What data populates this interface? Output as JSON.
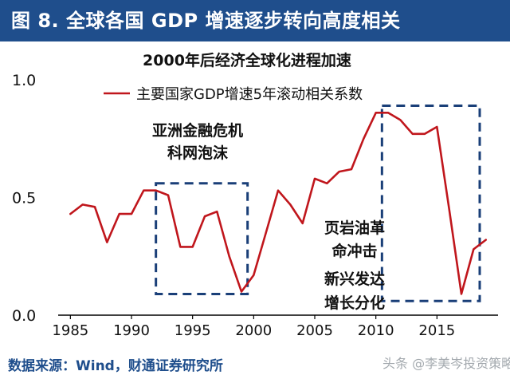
{
  "header": {
    "title": "图 8. 全球各国 GDP 增速逐步转向高度相关"
  },
  "footer": {
    "source": "数据来源：Wind，财通证券研究所"
  },
  "watermark": {
    "text": "头条 @李美岑投资策略"
  },
  "colors": {
    "header_bg": "#1f4e8c",
    "line": "#c0161c",
    "box": "#1a3f78",
    "source_text": "#1f4e8c"
  },
  "chart_data": {
    "type": "line",
    "title": "2000年后经济全球化进程加速",
    "xlabel": "",
    "ylabel": "",
    "xlim": [
      1984,
      2020
    ],
    "ylim": [
      0,
      1.0
    ],
    "x_ticks": [
      1985,
      1990,
      1995,
      2000,
      2005,
      2010,
      2015
    ],
    "y_ticks": [
      {
        "value": 0.0,
        "label": "0.0"
      },
      {
        "value": 0.5,
        "label": "0.5"
      },
      {
        "value": 1.0,
        "label": "1.0"
      }
    ],
    "grid": false,
    "legend": "top-right",
    "series": [
      {
        "name": "主要国家GDP增速5年滚动相关系数",
        "x": [
          1985,
          1986,
          1987,
          1988,
          1989,
          1990,
          1991,
          1992,
          1993,
          1994,
          1995,
          1996,
          1997,
          1998,
          1999,
          2000,
          2001,
          2002,
          2003,
          2004,
          2005,
          2006,
          2007,
          2008,
          2009,
          2010,
          2011,
          2012,
          2013,
          2014,
          2015,
          2016,
          2017,
          2018,
          2019
        ],
        "values": [
          0.43,
          0.47,
          0.46,
          0.31,
          0.43,
          0.43,
          0.53,
          0.53,
          0.51,
          0.29,
          0.29,
          0.42,
          0.44,
          0.25,
          0.1,
          0.17,
          0.35,
          0.53,
          0.47,
          0.39,
          0.58,
          0.56,
          0.61,
          0.62,
          0.75,
          0.86,
          0.86,
          0.83,
          0.77,
          0.77,
          0.8,
          0.45,
          0.09,
          0.28,
          0.32
        ]
      }
    ],
    "annotations": [
      {
        "label": "box-asia-crisis",
        "lines": [
          "亚洲金融危机",
          "科网泡沫"
        ],
        "x_range": [
          1992,
          1999.5
        ],
        "y_range": [
          0.09,
          0.56
        ]
      },
      {
        "label": "box-shale-revolution",
        "lines": [
          "页岩油革",
          "命冲击",
          "新兴发达",
          "增长分化"
        ],
        "x_range": [
          2010.5,
          2018.5
        ],
        "y_range": [
          0.06,
          0.89
        ]
      }
    ]
  }
}
